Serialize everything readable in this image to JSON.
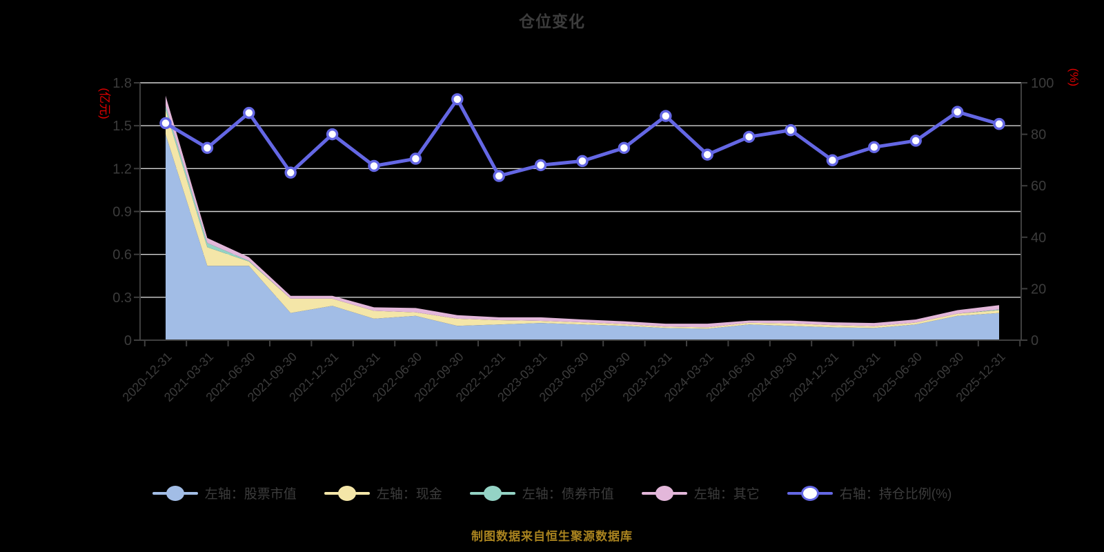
{
  "title": "仓位变化",
  "footer": "制图数据来自恒生聚源数据库",
  "colors": {
    "background": "#000000",
    "text": "#3c3c3c",
    "grid": "#d6d6d6",
    "axis_line": "#3f3f3f",
    "axis_unit": "#e00000",
    "footer_text": "#a9831f",
    "stock_area": "#a2bde6",
    "cash_area": "#f4e6a8",
    "bond_area": "#94d3c5",
    "other_area": "#e3b7da",
    "ratio_line": "#6467e4",
    "marker_fill": "#ffffff"
  },
  "left_axis": {
    "name": "(亿元)",
    "ticks": [
      "0",
      "0.3",
      "0.6",
      "0.9",
      "1.2",
      "1.5",
      "1.8"
    ],
    "min": 0,
    "max": 1.8
  },
  "right_axis": {
    "name": "(%)",
    "ticks": [
      "0",
      "20",
      "40",
      "60",
      "80",
      "100"
    ],
    "min": 0,
    "max": 100
  },
  "legend": {
    "items": [
      {
        "label": "左轴：股票市值",
        "color": "#a2bde6",
        "type": "filled"
      },
      {
        "label": "左轴：现金",
        "color": "#f4e6a8",
        "type": "filled"
      },
      {
        "label": "左轴：债券市值",
        "color": "#94d3c5",
        "type": "filled"
      },
      {
        "label": "左轴：其它",
        "color": "#e3b7da",
        "type": "filled"
      },
      {
        "label": "右轴：持仓比例(%)",
        "color": "#6467e4",
        "type": "hollow"
      }
    ]
  },
  "chart_data": {
    "type": "area+line",
    "title": "仓位变化",
    "categories": [
      "2020-12-31",
      "2021-03-31",
      "2021-06-30",
      "2021-09-30",
      "2021-12-31",
      "2022-03-31",
      "2022-06-30",
      "2022-09-30",
      "2022-12-31",
      "2023-03-31",
      "2023-06-30",
      "2023-09-30",
      "2023-12-31",
      "2024-03-31",
      "2024-06-30",
      "2024-09-30",
      "2024-12-31",
      "2025-03-31",
      "2025-06-30",
      "2025-09-30",
      "2025-12-31"
    ],
    "left_ylim": [
      0,
      1.8
    ],
    "right_ylim": [
      0,
      100
    ],
    "left_unit": "亿元",
    "right_unit": "%",
    "grid": true,
    "legend_position": "bottom",
    "series": [
      {
        "name": "左轴：股票市值",
        "axis": "left",
        "type": "area",
        "stack": true,
        "color": "#a2bde6",
        "values": [
          1.44,
          0.52,
          0.52,
          0.19,
          0.24,
          0.15,
          0.17,
          0.1,
          0.11,
          0.12,
          0.11,
          0.1,
          0.085,
          0.08,
          0.11,
          0.1,
          0.09,
          0.085,
          0.11,
          0.17,
          0.19
        ]
      },
      {
        "name": "左轴：现金",
        "axis": "left",
        "type": "area",
        "stack": true,
        "color": "#f4e6a8",
        "values": [
          0.17,
          0.13,
          0.03,
          0.1,
          0.05,
          0.055,
          0.025,
          0.05,
          0.03,
          0.015,
          0.015,
          0.012,
          0.01,
          0.01,
          0.012,
          0.017,
          0.015,
          0.013,
          0.013,
          0.015,
          0.02
        ]
      },
      {
        "name": "左轴：债券市值",
        "axis": "left",
        "type": "area",
        "stack": true,
        "color": "#94d3c5",
        "values": [
          0.03,
          0.03,
          0.005,
          0,
          0,
          0,
          0,
          0,
          0,
          0,
          0,
          0,
          0,
          0,
          0,
          0,
          0,
          0,
          0,
          0,
          0.005
        ]
      },
      {
        "name": "左轴：其它",
        "axis": "left",
        "type": "area",
        "stack": true,
        "color": "#e3b7da",
        "values": [
          0.07,
          0.035,
          0.025,
          0.02,
          0.02,
          0.025,
          0.03,
          0.025,
          0.02,
          0.025,
          0.02,
          0.02,
          0.02,
          0.025,
          0.015,
          0.02,
          0.02,
          0.022,
          0.022,
          0.025,
          0.03
        ]
      },
      {
        "name": "右轴：持仓比例(%)",
        "axis": "right",
        "type": "line",
        "color": "#6467e4",
        "values": [
          84.3,
          74.7,
          88.3,
          65.1,
          80.0,
          67.7,
          70.5,
          93.6,
          63.8,
          68.0,
          69.6,
          74.7,
          87.1,
          72.1,
          79.0,
          81.6,
          69.9,
          75.0,
          77.5,
          88.7,
          84.0
        ]
      }
    ]
  }
}
